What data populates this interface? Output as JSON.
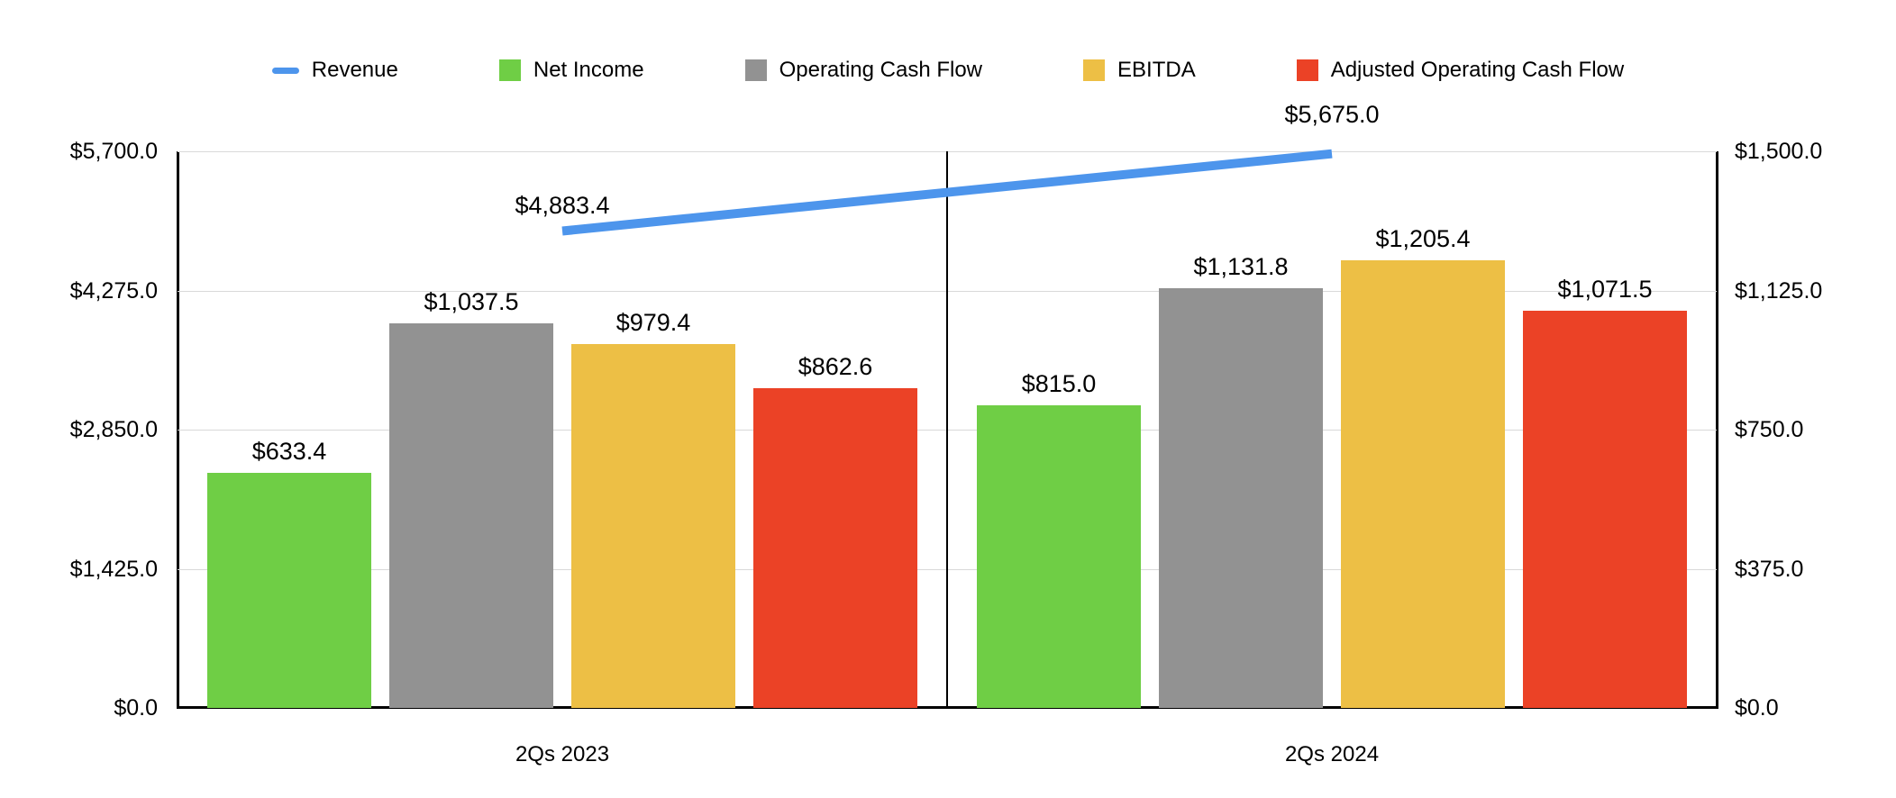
{
  "legend": {
    "items": [
      {
        "label": "Revenue",
        "color": "#4D95EC",
        "swatch": "line"
      },
      {
        "label": "Net Income",
        "color": "#6FCE45",
        "swatch": "square"
      },
      {
        "label": "Operating Cash Flow",
        "color": "#929292",
        "swatch": "square"
      },
      {
        "label": "EBITDA",
        "color": "#EDBF45",
        "swatch": "square"
      },
      {
        "label": "Adjusted Operating Cash Flow",
        "color": "#EB4226",
        "swatch": "square"
      }
    ]
  },
  "chart_data": {
    "type": "bar+line",
    "categories": [
      "2Qs 2023",
      "2Qs 2024"
    ],
    "bar_axis": "right",
    "bar_series": [
      {
        "name": "Net Income",
        "color": "#6FCE45",
        "values": [
          633.4,
          815.0
        ],
        "labels": [
          "$633.4",
          "$815.0"
        ]
      },
      {
        "name": "Operating Cash Flow",
        "color": "#929292",
        "values": [
          1037.5,
          1131.8
        ],
        "labels": [
          "$1,037.5",
          "$1,131.8"
        ]
      },
      {
        "name": "EBITDA",
        "color": "#EDBF45",
        "values": [
          979.4,
          1205.4
        ],
        "labels": [
          "$979.4",
          "$1,205.4"
        ]
      },
      {
        "name": "Adjusted Operating Cash Flow",
        "color": "#EB4226",
        "values": [
          862.6,
          1071.5
        ],
        "labels": [
          "$862.6",
          "$1,071.5"
        ]
      }
    ],
    "line_series": {
      "name": "Revenue",
      "color": "#4D95EC",
      "axis": "left",
      "values": [
        4883.4,
        5675.0
      ],
      "labels": [
        "$4,883.4",
        "$5,675.0"
      ]
    },
    "left_axis": {
      "min": 0,
      "max": 5700,
      "ticks": [
        "$5,700.0",
        "$4,275.0",
        "$2,850.0",
        "$1,425.0",
        "$0.0"
      ]
    },
    "right_axis": {
      "min": 0,
      "max": 1500,
      "ticks": [
        "$1,500.0",
        "$1,125.0",
        "$750.0",
        "$375.0",
        "$0.0"
      ]
    },
    "grid": true,
    "legend_position": "top",
    "grid_color": "#d9d9d9",
    "axis_color": "#000000"
  }
}
